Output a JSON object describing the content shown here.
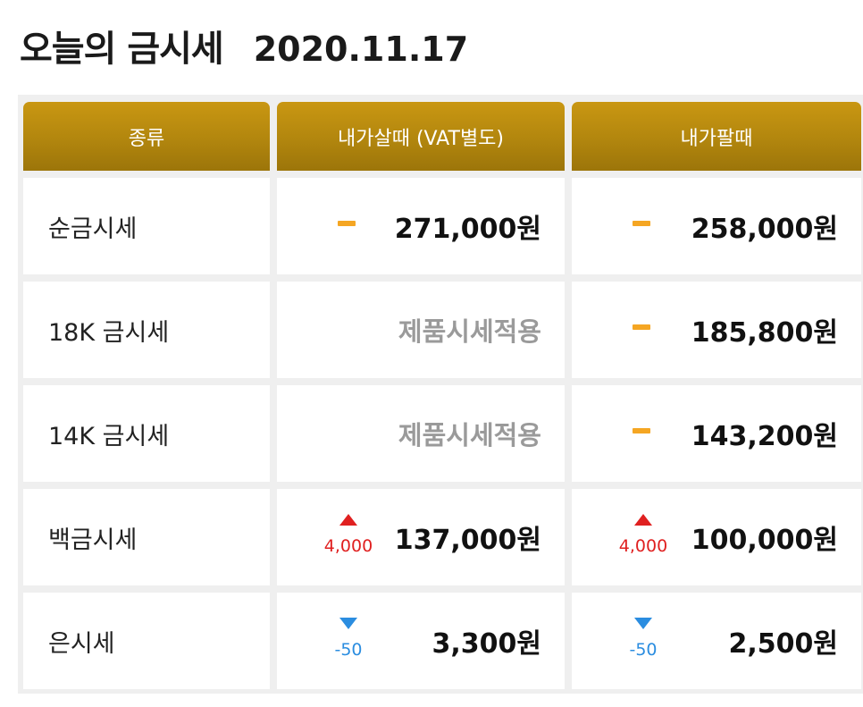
{
  "header": {
    "title": "오늘의 금시세",
    "date": "2020.11.17"
  },
  "columns": [
    "종류",
    "내가살때 (VAT별도)",
    "내가팔때"
  ],
  "rows": [
    {
      "name": "순금시세",
      "buy": {
        "price": "271,000원",
        "trend": "flat"
      },
      "sell": {
        "price": "258,000원",
        "trend": "flat"
      }
    },
    {
      "name": "18K 금시세",
      "buy": {
        "price": "제품시세적용",
        "trend": "none"
      },
      "sell": {
        "price": "185,800원",
        "trend": "flat"
      }
    },
    {
      "name": "14K 금시세",
      "buy": {
        "price": "제품시세적용",
        "trend": "none"
      },
      "sell": {
        "price": "143,200원",
        "trend": "flat"
      }
    },
    {
      "name": "백금시세",
      "buy": {
        "price": "137,000원",
        "trend": "up",
        "change": "4,000"
      },
      "sell": {
        "price": "100,000원",
        "trend": "up",
        "change": "4,000"
      }
    },
    {
      "name": "은시세",
      "buy": {
        "price": "3,300원",
        "trend": "down",
        "change": "-50"
      },
      "sell": {
        "price": "2,500원",
        "trend": "down",
        "change": "-50"
      }
    }
  ],
  "colors": {
    "header_gold": "#b2860e",
    "up": "#e02020",
    "down": "#2b8de0",
    "flat": "#f5a623",
    "na_text": "#9a9a9a"
  },
  "icons": {
    "up": "red-up-triangle-icon",
    "down": "blue-down-triangle-icon",
    "flat": "orange-dash-icon"
  }
}
